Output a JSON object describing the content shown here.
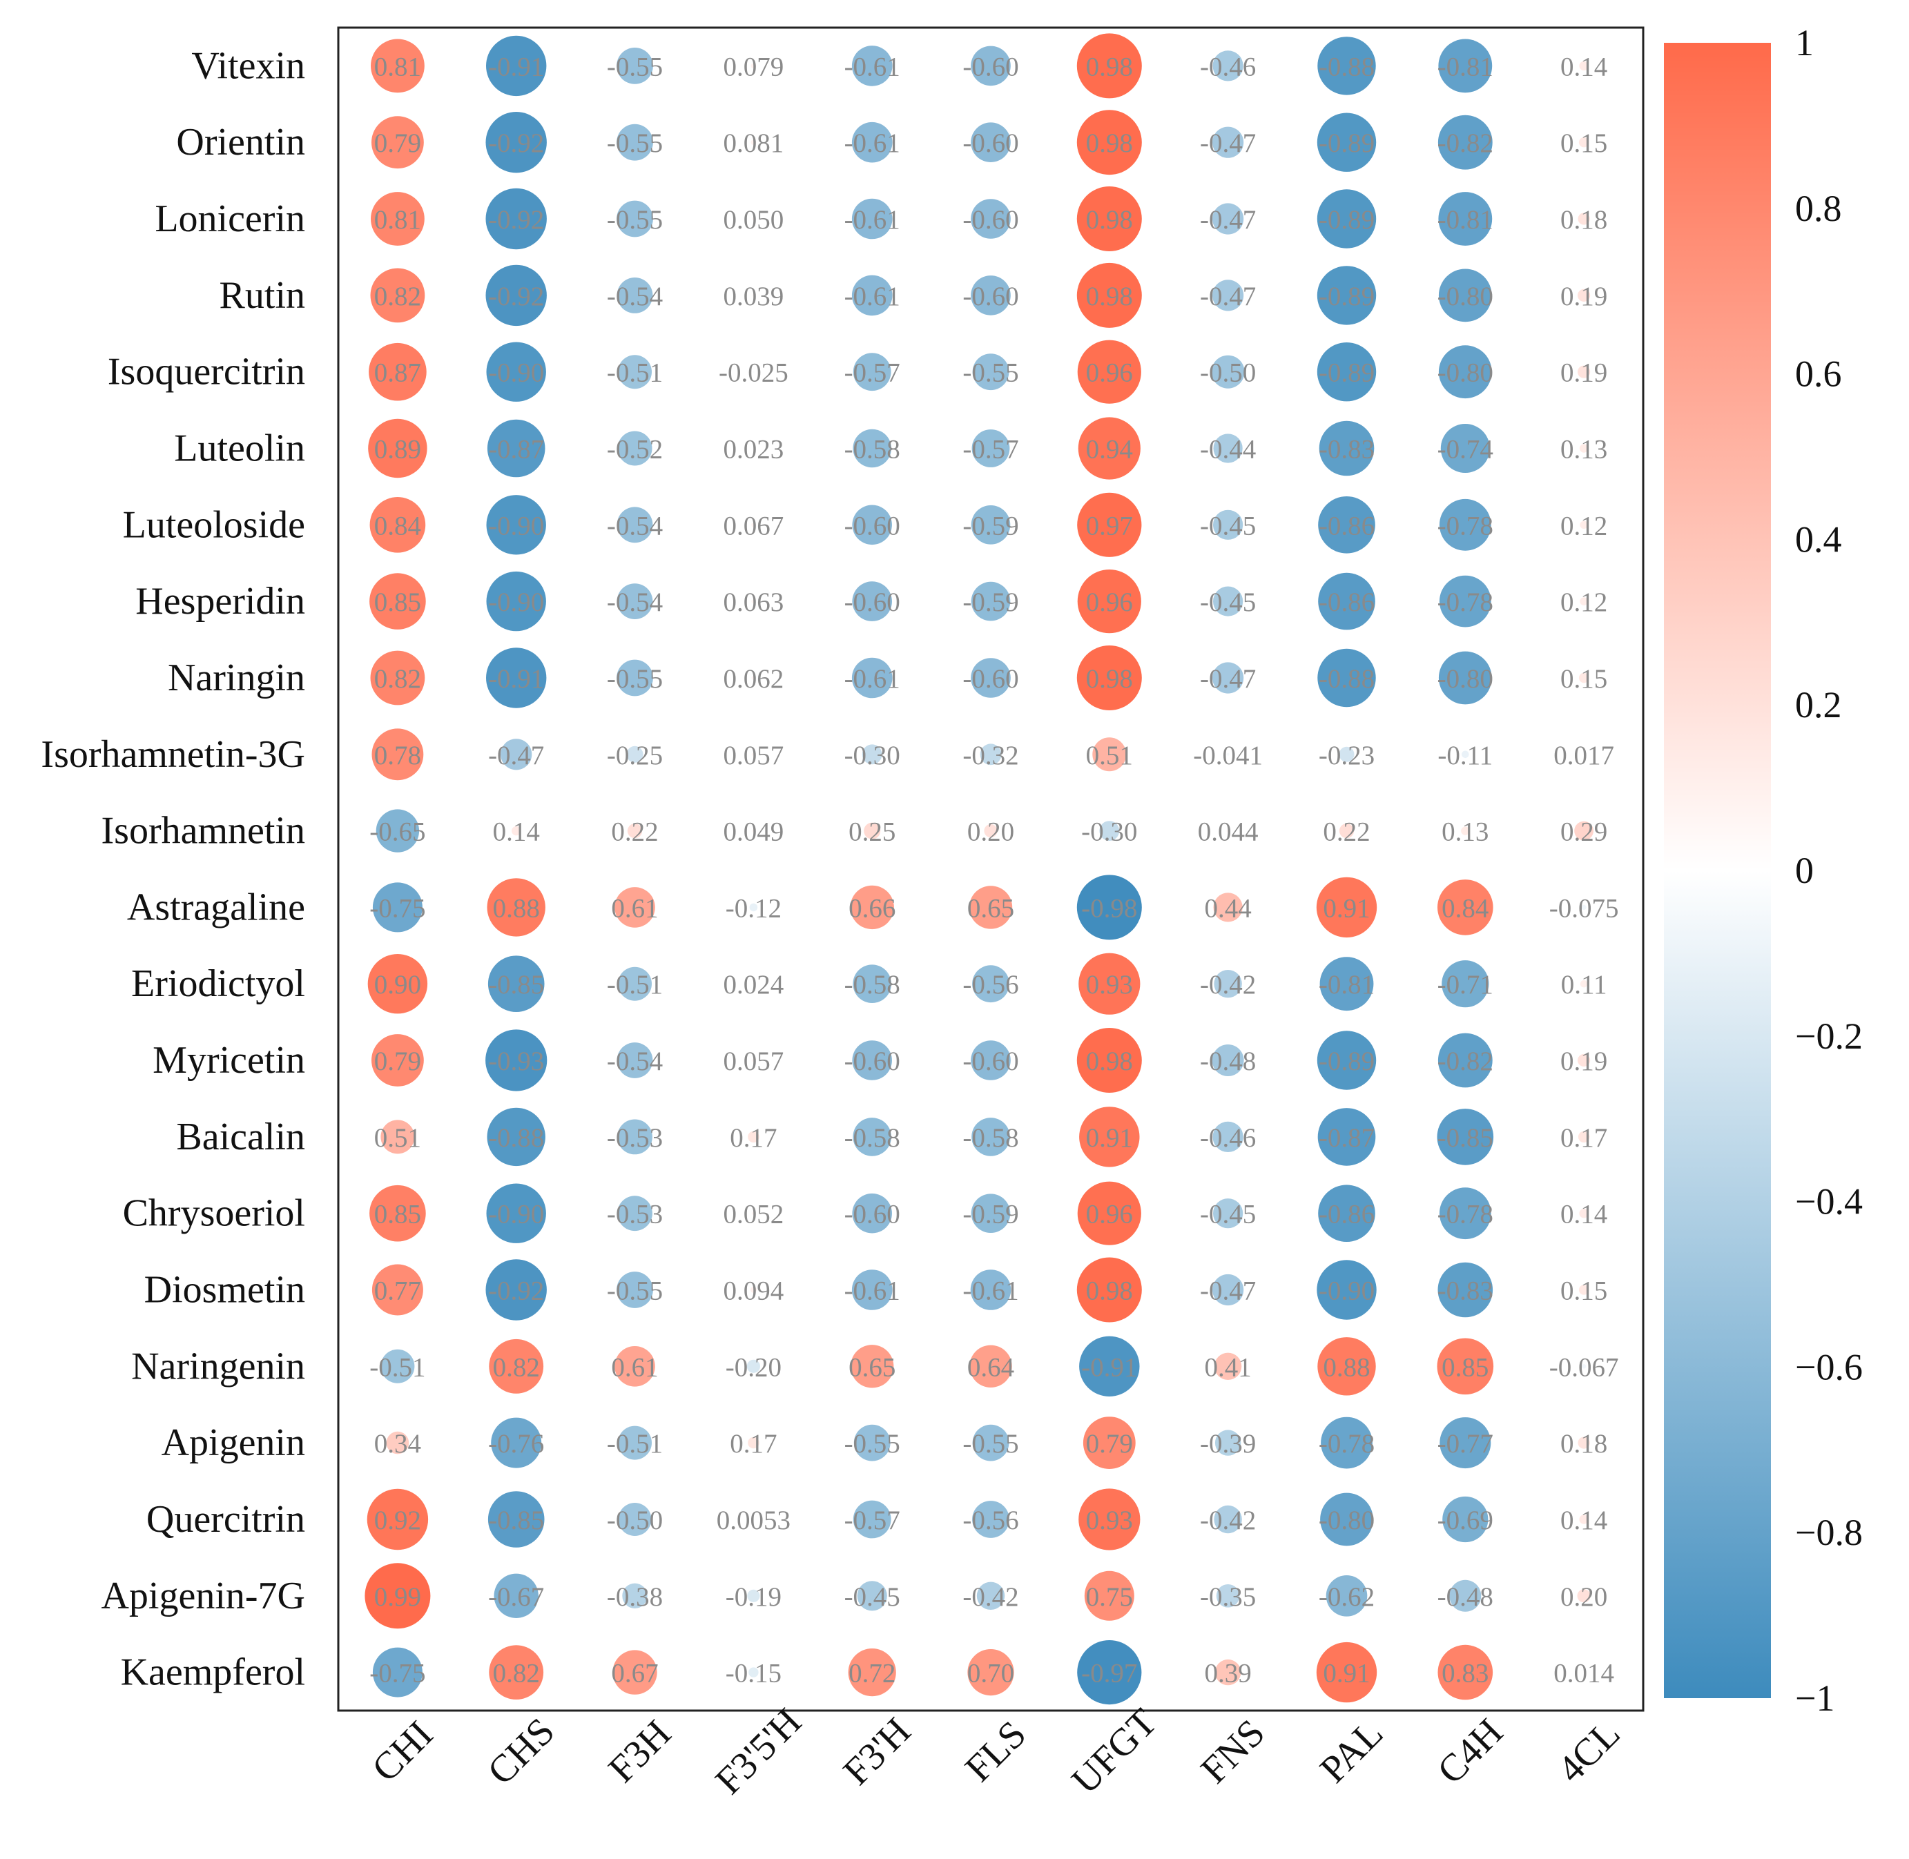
{
  "chart_data": {
    "type": "heatmap",
    "style": "circle correlation matrix",
    "title": "",
    "rows": [
      "Vitexin",
      "Orientin",
      "Lonicerin",
      "Rutin",
      "Isoquercitrin",
      "Luteolin",
      "Luteoloside",
      "Hesperidin",
      "Naringin",
      "Isorhamnetin-3G",
      "Isorhamnetin",
      "Astragaline",
      "Eriodictyol",
      "Myricetin",
      "Baicalin",
      "Chrysoeriol",
      "Diosmetin",
      "Naringenin",
      "Apigenin",
      "Quercitrin",
      "Apigenin-7G",
      "Kaempferol"
    ],
    "columns": [
      "CHI",
      "CHS",
      "F3H",
      "F3'5'H",
      "F3'H",
      "FLS",
      "UFGT",
      "FNS",
      "PAL",
      "C4H",
      "4CL"
    ],
    "values": [
      [
        0.81,
        -0.91,
        -0.55,
        0.079,
        -0.61,
        -0.6,
        0.98,
        -0.46,
        -0.88,
        -0.81,
        0.14
      ],
      [
        0.79,
        -0.92,
        -0.55,
        0.081,
        -0.61,
        -0.6,
        0.98,
        -0.47,
        -0.89,
        -0.82,
        0.15
      ],
      [
        0.81,
        -0.92,
        -0.55,
        0.05,
        -0.61,
        -0.6,
        0.98,
        -0.47,
        -0.89,
        -0.81,
        0.18
      ],
      [
        0.82,
        -0.92,
        -0.54,
        0.039,
        -0.61,
        -0.6,
        0.98,
        -0.47,
        -0.89,
        -0.8,
        0.19
      ],
      [
        0.87,
        -0.9,
        -0.51,
        -0.025,
        -0.57,
        -0.55,
        0.96,
        -0.5,
        -0.89,
        -0.8,
        0.19
      ],
      [
        0.89,
        -0.87,
        -0.52,
        0.023,
        -0.58,
        -0.57,
        0.94,
        -0.44,
        -0.83,
        -0.74,
        0.13
      ],
      [
        0.84,
        -0.9,
        -0.54,
        0.067,
        -0.6,
        -0.59,
        0.97,
        -0.45,
        -0.86,
        -0.78,
        0.12
      ],
      [
        0.85,
        -0.9,
        -0.54,
        0.063,
        -0.6,
        -0.59,
        0.96,
        -0.45,
        -0.86,
        -0.78,
        0.12
      ],
      [
        0.82,
        -0.91,
        -0.55,
        0.062,
        -0.61,
        -0.6,
        0.98,
        -0.47,
        -0.88,
        -0.8,
        0.15
      ],
      [
        0.78,
        -0.47,
        -0.25,
        0.057,
        -0.3,
        -0.32,
        0.51,
        -0.041,
        -0.23,
        -0.11,
        0.017
      ],
      [
        -0.65,
        0.14,
        0.22,
        0.049,
        0.25,
        0.2,
        -0.3,
        0.044,
        0.22,
        0.13,
        0.29
      ],
      [
        -0.75,
        0.88,
        0.61,
        -0.12,
        0.66,
        0.65,
        -0.98,
        0.44,
        0.91,
        0.84,
        -0.075
      ],
      [
        0.9,
        -0.85,
        -0.51,
        0.024,
        -0.58,
        -0.56,
        0.93,
        -0.42,
        -0.81,
        -0.71,
        0.11
      ],
      [
        0.79,
        -0.93,
        -0.54,
        0.057,
        -0.6,
        -0.6,
        0.98,
        -0.48,
        -0.89,
        -0.82,
        0.19
      ],
      [
        0.51,
        -0.88,
        -0.53,
        0.17,
        -0.58,
        -0.58,
        0.91,
        -0.46,
        -0.87,
        -0.85,
        0.17
      ],
      [
        0.85,
        -0.9,
        -0.53,
        0.052,
        -0.6,
        -0.59,
        0.96,
        -0.45,
        -0.86,
        -0.78,
        0.14
      ],
      [
        0.77,
        -0.92,
        -0.55,
        0.094,
        -0.61,
        -0.61,
        0.98,
        -0.47,
        -0.9,
        -0.83,
        0.15
      ],
      [
        -0.51,
        0.82,
        0.61,
        -0.2,
        0.65,
        0.64,
        -0.91,
        0.41,
        0.88,
        0.85,
        -0.067
      ],
      [
        0.34,
        -0.76,
        -0.51,
        0.17,
        -0.55,
        -0.55,
        0.79,
        -0.39,
        -0.78,
        -0.77,
        0.18
      ],
      [
        0.92,
        -0.85,
        -0.5,
        0.0053,
        -0.57,
        -0.56,
        0.93,
        -0.42,
        -0.8,
        -0.69,
        0.14
      ],
      [
        0.99,
        -0.67,
        -0.38,
        -0.19,
        -0.45,
        -0.42,
        0.75,
        -0.35,
        -0.62,
        -0.48,
        0.2
      ],
      [
        -0.75,
        0.82,
        0.67,
        -0.15,
        0.72,
        0.7,
        -0.97,
        0.39,
        0.91,
        0.83,
        0.014
      ]
    ],
    "value_labels": [
      [
        "0.81",
        "-0.91",
        "-0.55",
        "0.079",
        "-0.61",
        "-0.60",
        "0.98",
        "-0.46",
        "-0.88",
        "-0.81",
        "0.14"
      ],
      [
        "0.79",
        "-0.92",
        "-0.55",
        "0.081",
        "-0.61",
        "-0.60",
        "0.98",
        "-0.47",
        "-0.89",
        "-0.82",
        "0.15"
      ],
      [
        "0.81",
        "-0.92",
        "-0.55",
        "0.050",
        "-0.61",
        "-0.60",
        "0.98",
        "-0.47",
        "-0.89",
        "-0.81",
        "0.18"
      ],
      [
        "0.82",
        "-0.92",
        "-0.54",
        "0.039",
        "-0.61",
        "-0.60",
        "0.98",
        "-0.47",
        "-0.89",
        "-0.80",
        "0.19"
      ],
      [
        "0.87",
        "-0.90",
        "-0.51",
        "-0.025",
        "-0.57",
        "-0.55",
        "0.96",
        "-0.50",
        "-0.89",
        "-0.80",
        "0.19"
      ],
      [
        "0.89",
        "-0.87",
        "-0.52",
        "0.023",
        "-0.58",
        "-0.57",
        "0.94",
        "-0.44",
        "-0.83",
        "-0.74",
        "0.13"
      ],
      [
        "0.84",
        "-0.90",
        "-0.54",
        "0.067",
        "-0.60",
        "-0.59",
        "0.97",
        "-0.45",
        "-0.86",
        "-0.78",
        "0.12"
      ],
      [
        "0.85",
        "-0.90",
        "-0.54",
        "0.063",
        "-0.60",
        "-0.59",
        "0.96",
        "-0.45",
        "-0.86",
        "-0.78",
        "0.12"
      ],
      [
        "0.82",
        "-0.91",
        "-0.55",
        "0.062",
        "-0.61",
        "-0.60",
        "0.98",
        "-0.47",
        "-0.88",
        "-0.80",
        "0.15"
      ],
      [
        "0.78",
        "-0.47",
        "-0.25",
        "0.057",
        "-0.30",
        "-0.32",
        "0.51",
        "-0.041",
        "-0.23",
        "-0.11",
        "0.017"
      ],
      [
        "-0.65",
        "0.14",
        "0.22",
        "0.049",
        "0.25",
        "0.20",
        "-0.30",
        "0.044",
        "0.22",
        "0.13",
        "0.29"
      ],
      [
        "-0.75",
        "0.88",
        "0.61",
        "-0.12",
        "0.66",
        "0.65",
        "-0.98",
        "0.44",
        "0.91",
        "0.84",
        "-0.075"
      ],
      [
        "0.90",
        "-0.85",
        "-0.51",
        "0.024",
        "-0.58",
        "-0.56",
        "0.93",
        "-0.42",
        "-0.81",
        "-0.71",
        "0.11"
      ],
      [
        "0.79",
        "-0.93",
        "-0.54",
        "0.057",
        "-0.60",
        "-0.60",
        "0.98",
        "-0.48",
        "-0.89",
        "-0.82",
        "0.19"
      ],
      [
        "0.51",
        "-0.88",
        "-0.53",
        "0.17",
        "-0.58",
        "-0.58",
        "0.91",
        "-0.46",
        "-0.87",
        "-0.85",
        "0.17"
      ],
      [
        "0.85",
        "-0.90",
        "-0.53",
        "0.052",
        "-0.60",
        "-0.59",
        "0.96",
        "-0.45",
        "-0.86",
        "-0.78",
        "0.14"
      ],
      [
        "0.77",
        "-0.92",
        "-0.55",
        "0.094",
        "-0.61",
        "-0.61",
        "0.98",
        "-0.47",
        "-0.90",
        "-0.83",
        "0.15"
      ],
      [
        "-0.51",
        "0.82",
        "0.61",
        "-0.20",
        "0.65",
        "0.64",
        "-0.91",
        "0.41",
        "0.88",
        "0.85",
        "-0.067"
      ],
      [
        "0.34",
        "-0.76",
        "-0.51",
        "0.17",
        "-0.55",
        "-0.55",
        "0.79",
        "-0.39",
        "-0.78",
        "-0.77",
        "0.18"
      ],
      [
        "0.92",
        "-0.85",
        "-0.50",
        "0.0053",
        "-0.57",
        "-0.56",
        "0.93",
        "-0.42",
        "-0.80",
        "-0.69",
        "0.14"
      ],
      [
        "0.99",
        "-0.67",
        "-0.38",
        "-0.19",
        "-0.45",
        "-0.42",
        "0.75",
        "-0.35",
        "-0.62",
        "-0.48",
        "0.20"
      ],
      [
        "-0.75",
        "0.82",
        "0.67",
        "-0.15",
        "0.72",
        "0.70",
        "-0.97",
        "0.39",
        "0.91",
        "0.83",
        "0.014"
      ]
    ],
    "color_scale": {
      "range": [
        -1,
        1
      ],
      "low_color": "#3d8bbd",
      "mid_color": "#ffffff",
      "high_color": "#ff6a4a",
      "ticks": [
        1,
        0.8,
        0.6,
        0.4,
        0.2,
        0,
        -0.2,
        -0.4,
        -0.6,
        -0.8,
        -1
      ],
      "tick_labels": [
        "1",
        "0.8",
        "0.6",
        "0.4",
        "0.2",
        "0",
        "−0.2",
        "−0.4",
        "−0.6",
        "−0.8",
        "−1"
      ],
      "legend_placement": "right"
    },
    "value_label_color": "#8a8a8a"
  }
}
